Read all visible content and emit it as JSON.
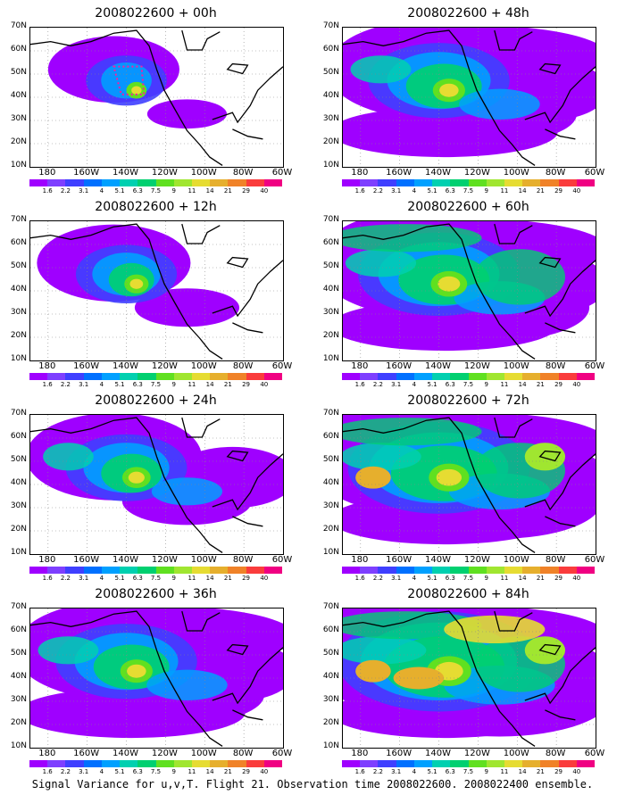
{
  "panels": [
    {
      "title": "2008022600 + 00h",
      "level": 0
    },
    {
      "title": "2008022600 + 48h",
      "level": 3
    },
    {
      "title": "2008022600 + 12h",
      "level": 1
    },
    {
      "title": "2008022600 + 60h",
      "level": 4
    },
    {
      "title": "2008022600 + 24h",
      "level": 2
    },
    {
      "title": "2008022600 + 72h",
      "level": 5
    },
    {
      "title": "2008022600 + 36h",
      "level": 3
    },
    {
      "title": "2008022600 + 84h",
      "level": 6
    }
  ],
  "lat_labels": [
    "70N",
    "60N",
    "50N",
    "40N",
    "30N",
    "20N",
    "10N"
  ],
  "lon_labels": [
    "180",
    "160W",
    "140W",
    "120W",
    "100W",
    "80W",
    "60W"
  ],
  "colorbar": {
    "labels": [
      "1.6",
      "2.2",
      "3.1",
      "4",
      "5.1",
      "6.3",
      "7.5",
      "9",
      "11",
      "14",
      "21",
      "29",
      "40"
    ],
    "colors": [
      "#9f00ff",
      "#7e3fff",
      "#3f3fff",
      "#0070ff",
      "#00a0ff",
      "#00d0b0",
      "#00d070",
      "#60e020",
      "#a0e630",
      "#e6dc32",
      "#e6af2d",
      "#f08228",
      "#fa3c3c",
      "#f00082"
    ]
  },
  "caption": "Signal Variance for u,v,T. Flight 21. Observation time 2008022600. 2008022400 ensemble."
}
